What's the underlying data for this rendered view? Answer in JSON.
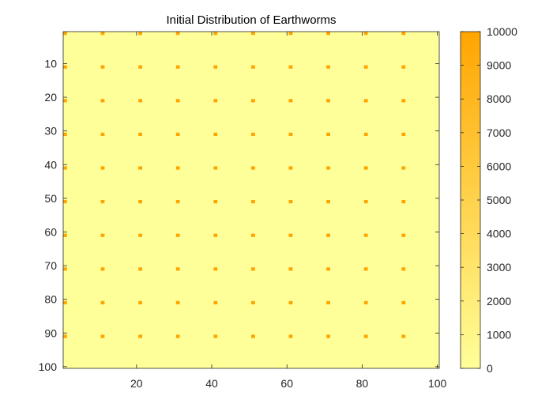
{
  "chart_data": {
    "type": "heatmap",
    "title": "Initial Distribution of Earthworms",
    "xlabel": "",
    "ylabel": "",
    "grid_size": [
      100,
      100
    ],
    "x_range": [
      1,
      100
    ],
    "y_range": [
      1,
      100
    ],
    "y_direction": "reversed",
    "x_ticks": [
      20,
      40,
      60,
      80,
      100
    ],
    "y_ticks": [
      10,
      20,
      30,
      40,
      50,
      60,
      70,
      80,
      90,
      100
    ],
    "background_value": 0,
    "point_value": 10000,
    "points": {
      "x": [
        1,
        11,
        21,
        31,
        41,
        51,
        61,
        71,
        81,
        91
      ],
      "y": [
        1,
        11,
        21,
        31,
        41,
        51,
        61,
        71,
        81,
        91
      ]
    },
    "colorbar": {
      "limits": [
        0,
        10000
      ],
      "ticks": [
        0,
        1000,
        2000,
        3000,
        4000,
        5000,
        6000,
        7000,
        8000,
        9000,
        10000
      ],
      "low_color": "#FFFF99",
      "high_color": "#FFA500",
      "placement": "right"
    },
    "grid": false
  }
}
